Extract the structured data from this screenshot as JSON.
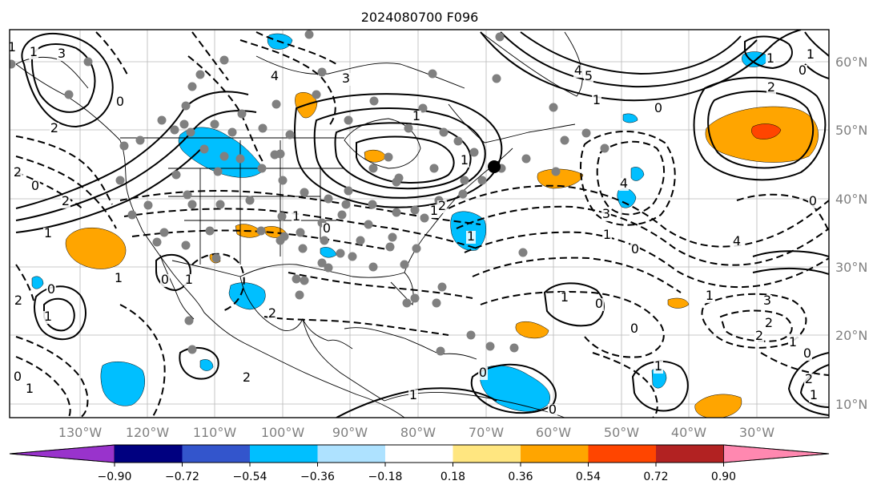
{
  "title": "2024080700 F096",
  "map": {
    "lon_labels": [
      "130°W",
      "120°W",
      "110°W",
      "100°W",
      "90°W",
      "80°W",
      "70°W",
      "60°W",
      "50°W",
      "40°W",
      "30°W"
    ],
    "lat_labels": [
      "60°N",
      "50°N",
      "40°N",
      "30°N",
      "20°N",
      "10°N"
    ],
    "label_color": "#808080",
    "grid": true
  },
  "contour_labels": [
    "3",
    "1",
    "0",
    "2",
    "1",
    "0",
    "1",
    "2",
    "2",
    "1",
    "0",
    "4",
    "3",
    "5",
    "4",
    "1",
    "0",
    "1",
    "1",
    "0",
    "2",
    "4",
    "3",
    "1",
    "0",
    "4",
    "3",
    "2",
    "1",
    "0",
    "2",
    "1",
    "1",
    "0",
    "1",
    "1",
    "0",
    "2",
    "2",
    "1",
    "0",
    "1",
    "2",
    "1",
    "0",
    "1",
    "0",
    "1",
    "0",
    "1",
    "0",
    "2",
    "1",
    "1",
    "1",
    "0",
    "2"
  ],
  "colorbar": {
    "colors": [
      "#9933cc",
      "#000080",
      "#3355cc",
      "#00bfff",
      "#aee2ff",
      "#ffffff",
      "#ffe680",
      "#ffa500",
      "#ff4500",
      "#b22222",
      "#ff88b0"
    ],
    "ticks": [
      "−0.90",
      "−0.72",
      "−0.54",
      "−0.36",
      "−0.18",
      "0.18",
      "0.36",
      "0.54",
      "0.72",
      "0.90"
    ]
  }
}
